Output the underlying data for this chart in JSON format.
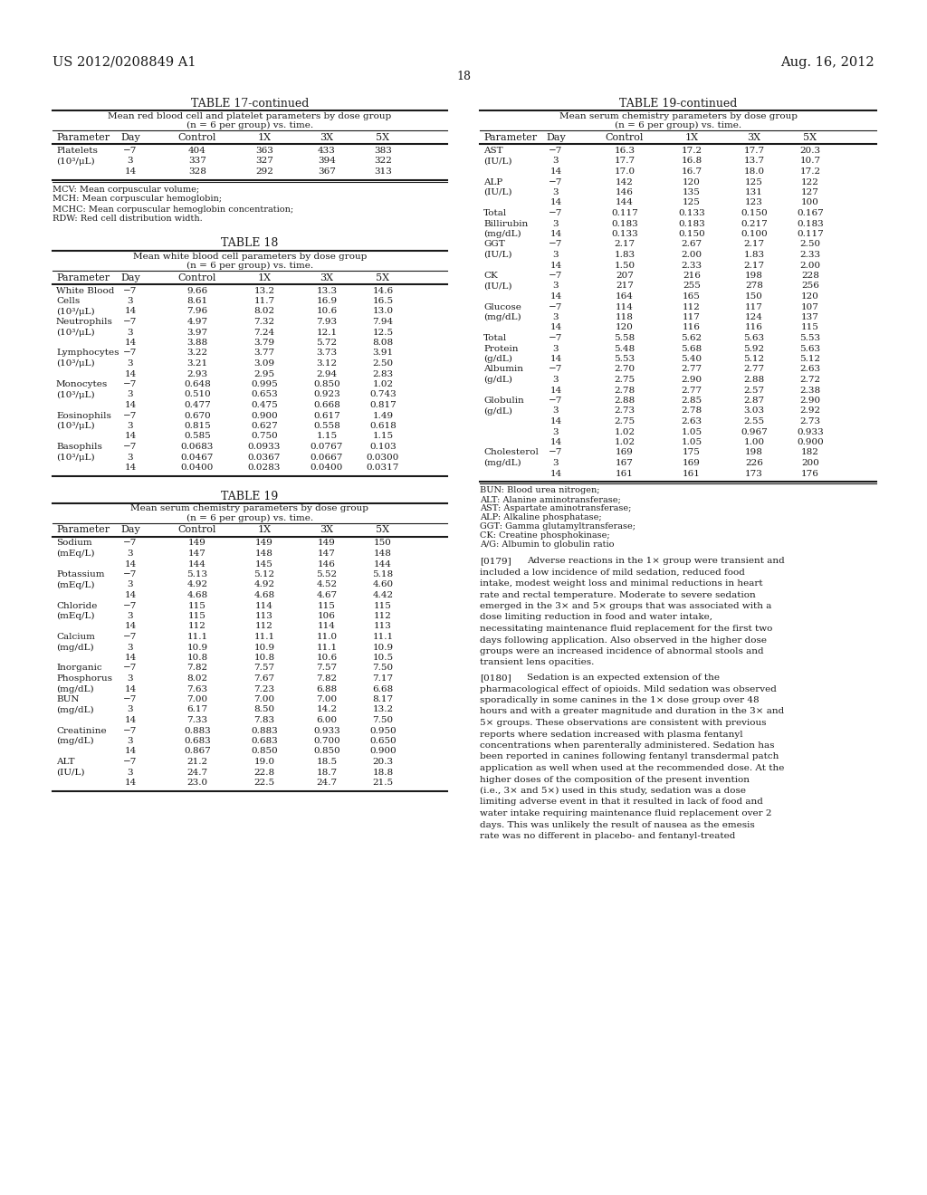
{
  "header_left": "US 2012/0208849 A1",
  "header_right": "Aug. 16, 2012",
  "page_number": "18",
  "bg": "#ffffff",
  "t17c_title": "TABLE 17-continued",
  "t17c_sub1": "Mean red blood cell and platelet parameters by dose group",
  "t17c_sub2": "(n = 6 per group) vs. time.",
  "t17c_headers": [
    "Parameter",
    "Day",
    "Control",
    "1X",
    "3X",
    "5X"
  ],
  "t17c_rows": [
    [
      "Platelets",
      "−7",
      "404",
      "363",
      "433",
      "383"
    ],
    [
      "(10³/μL)",
      "3",
      "337",
      "327",
      "394",
      "322"
    ],
    [
      "",
      "14",
      "328",
      "292",
      "367",
      "313"
    ]
  ],
  "t17c_fn": [
    "MCV: Mean corpuscular volume;",
    "MCH: Mean corpuscular hemoglobin;",
    "MCHC: Mean corpuscular hemoglobin concentration;",
    "RDW: Red cell distribution width."
  ],
  "t18_title": "TABLE 18",
  "t18_sub1": "Mean white blood cell parameters by dose group",
  "t18_sub2": "(n = 6 per group) vs. time.",
  "t18_rows": [
    [
      "White Blood",
      "−7",
      "9.66",
      "13.2",
      "13.3",
      "14.6"
    ],
    [
      "Cells",
      "3",
      "8.61",
      "11.7",
      "16.9",
      "16.5"
    ],
    [
      "(10³/μL)",
      "14",
      "7.96",
      "8.02",
      "10.6",
      "13.0"
    ],
    [
      "Neutrophils",
      "−7",
      "4.97",
      "7.32",
      "7.93",
      "7.94"
    ],
    [
      "(10³/μL)",
      "3",
      "3.97",
      "7.24",
      "12.1",
      "12.5"
    ],
    [
      "",
      "14",
      "3.88",
      "3.79",
      "5.72",
      "8.08"
    ],
    [
      "Lymphocytes",
      "−7",
      "3.22",
      "3.77",
      "3.73",
      "3.91"
    ],
    [
      "(10³/μL)",
      "3",
      "3.21",
      "3.09",
      "3.12",
      "2.50"
    ],
    [
      "",
      "14",
      "2.93",
      "2.95",
      "2.94",
      "2.83"
    ],
    [
      "Monocytes",
      "−7",
      "0.648",
      "0.995",
      "0.850",
      "1.02"
    ],
    [
      "(10³/μL)",
      "3",
      "0.510",
      "0.653",
      "0.923",
      "0.743"
    ],
    [
      "",
      "14",
      "0.477",
      "0.475",
      "0.668",
      "0.817"
    ],
    [
      "Eosinophils",
      "−7",
      "0.670",
      "0.900",
      "0.617",
      "1.49"
    ],
    [
      "(10³/μL)",
      "3",
      "0.815",
      "0.627",
      "0.558",
      "0.618"
    ],
    [
      "",
      "14",
      "0.585",
      "0.750",
      "1.15",
      "1.15"
    ],
    [
      "Basophils",
      "−7",
      "0.0683",
      "0.0933",
      "0.0767",
      "0.103"
    ],
    [
      "(10³/μL)",
      "3",
      "0.0467",
      "0.0367",
      "0.0667",
      "0.0300"
    ],
    [
      "",
      "14",
      "0.0400",
      "0.0283",
      "0.0400",
      "0.0317"
    ]
  ],
  "t19_title": "TABLE 19",
  "t19_sub1": "Mean serum chemistry parameters by dose group",
  "t19_sub2": "(n = 6 per group) vs. time.",
  "t19_rows": [
    [
      "Sodium",
      "−7",
      "149",
      "149",
      "149",
      "150"
    ],
    [
      "(mEq/L)",
      "3",
      "147",
      "148",
      "147",
      "148"
    ],
    [
      "",
      "14",
      "144",
      "145",
      "146",
      "144"
    ],
    [
      "Potassium",
      "−7",
      "5.13",
      "5.12",
      "5.52",
      "5.18"
    ],
    [
      "(mEq/L)",
      "3",
      "4.92",
      "4.92",
      "4.52",
      "4.60"
    ],
    [
      "",
      "14",
      "4.68",
      "4.68",
      "4.67",
      "4.42"
    ],
    [
      "Chloride",
      "−7",
      "115",
      "114",
      "115",
      "115"
    ],
    [
      "(mEq/L)",
      "3",
      "115",
      "113",
      "106",
      "112"
    ],
    [
      "",
      "14",
      "112",
      "112",
      "114",
      "113"
    ],
    [
      "Calcium",
      "−7",
      "11.1",
      "11.1",
      "11.0",
      "11.1"
    ],
    [
      "(mg/dL)",
      "3",
      "10.9",
      "10.9",
      "11.1",
      "10.9"
    ],
    [
      "",
      "14",
      "10.8",
      "10.8",
      "10.6",
      "10.5"
    ],
    [
      "Inorganic",
      "−7",
      "7.82",
      "7.57",
      "7.57",
      "7.50"
    ],
    [
      "Phosphorus",
      "3",
      "8.02",
      "7.67",
      "7.82",
      "7.17"
    ],
    [
      "(mg/dL)",
      "14",
      "7.63",
      "7.23",
      "6.88",
      "6.68"
    ],
    [
      "BUN",
      "−7",
      "7.00",
      "7.00",
      "7.00",
      "8.17"
    ],
    [
      "(mg/dL)",
      "3",
      "6.17",
      "8.50",
      "14.2",
      "13.2"
    ],
    [
      "",
      "14",
      "7.33",
      "7.83",
      "6.00",
      "7.50"
    ],
    [
      "Creatinine",
      "−7",
      "0.883",
      "0.883",
      "0.933",
      "0.950"
    ],
    [
      "(mg/dL)",
      "3",
      "0.683",
      "0.683",
      "0.700",
      "0.650"
    ],
    [
      "",
      "14",
      "0.867",
      "0.850",
      "0.850",
      "0.900"
    ],
    [
      "ALT",
      "−7",
      "21.2",
      "19.0",
      "18.5",
      "20.3"
    ],
    [
      "(IU/L)",
      "3",
      "24.7",
      "22.8",
      "18.7",
      "18.8"
    ],
    [
      "",
      "14",
      "23.0",
      "22.5",
      "24.7",
      "21.5"
    ]
  ],
  "t19c_title": "TABLE 19-continued",
  "t19c_sub1": "Mean serum chemistry parameters by dose group",
  "t19c_sub2": "(n = 6 per group) vs. time.",
  "t19c_rows": [
    [
      "AST",
      "−7",
      "16.3",
      "17.2",
      "17.7",
      "20.3"
    ],
    [
      "(IU/L)",
      "3",
      "17.7",
      "16.8",
      "13.7",
      "10.7"
    ],
    [
      "",
      "14",
      "17.0",
      "16.7",
      "18.0",
      "17.2"
    ],
    [
      "ALP",
      "−7",
      "142",
      "120",
      "125",
      "122"
    ],
    [
      "(IU/L)",
      "3",
      "146",
      "135",
      "131",
      "127"
    ],
    [
      "",
      "14",
      "144",
      "125",
      "123",
      "100"
    ],
    [
      "Total",
      "−7",
      "0.117",
      "0.133",
      "0.150",
      "0.167"
    ],
    [
      "Billirubin",
      "3",
      "0.183",
      "0.183",
      "0.217",
      "0.183"
    ],
    [
      "(mg/dL)",
      "14",
      "0.133",
      "0.150",
      "0.100",
      "0.117"
    ],
    [
      "GGT",
      "−7",
      "2.17",
      "2.67",
      "2.17",
      "2.50"
    ],
    [
      "(IU/L)",
      "3",
      "1.83",
      "2.00",
      "1.83",
      "2.33"
    ],
    [
      "",
      "14",
      "1.50",
      "2.33",
      "2.17",
      "2.00"
    ],
    [
      "CK",
      "−7",
      "207",
      "216",
      "198",
      "228"
    ],
    [
      "(IU/L)",
      "3",
      "217",
      "255",
      "278",
      "256"
    ],
    [
      "",
      "14",
      "164",
      "165",
      "150",
      "120"
    ],
    [
      "Glucose",
      "−7",
      "114",
      "112",
      "117",
      "107"
    ],
    [
      "(mg/dL)",
      "3",
      "118",
      "117",
      "124",
      "137"
    ],
    [
      "",
      "14",
      "120",
      "116",
      "116",
      "115"
    ],
    [
      "Total",
      "−7",
      "5.58",
      "5.62",
      "5.63",
      "5.53"
    ],
    [
      "Protein",
      "3",
      "5.48",
      "5.68",
      "5.92",
      "5.63"
    ],
    [
      "(g/dL)",
      "14",
      "5.53",
      "5.40",
      "5.12",
      "5.12"
    ],
    [
      "Albumin",
      "−7",
      "2.70",
      "2.77",
      "2.77",
      "2.63"
    ],
    [
      "(g/dL)",
      "3",
      "2.75",
      "2.90",
      "2.88",
      "2.72"
    ],
    [
      "",
      "14",
      "2.78",
      "2.77",
      "2.57",
      "2.38"
    ],
    [
      "Globulin",
      "−7",
      "2.88",
      "2.85",
      "2.87",
      "2.90"
    ],
    [
      "(g/dL)",
      "3",
      "2.73",
      "2.78",
      "3.03",
      "2.92"
    ],
    [
      "",
      "14",
      "2.75",
      "2.63",
      "2.55",
      "2.73"
    ],
    [
      "",
      "3",
      "1.02",
      "1.05",
      "0.967",
      "0.933"
    ],
    [
      "",
      "14",
      "1.02",
      "1.05",
      "1.00",
      "0.900"
    ],
    [
      "Cholesterol",
      "−7",
      "169",
      "175",
      "198",
      "182"
    ],
    [
      "(mg/dL)",
      "3",
      "167",
      "169",
      "226",
      "200"
    ],
    [
      "",
      "14",
      "161",
      "161",
      "173",
      "176"
    ]
  ],
  "t19c_fn": [
    "BUN: Blood urea nitrogen;",
    "ALT: Alanine aminotransferase;",
    "AST: Aspartate aminotransferase;",
    "ALP: Alkaline phosphatase;",
    "GGT: Gamma glutamyltransferase;",
    "CK: Creatine phosphokinase;",
    "A/G: Albumin to globulin ratio"
  ],
  "p179_label": "[0179]",
  "p179_text": "Adverse reactions in the 1× group were transient and included a low incidence of mild sedation, reduced food intake, modest weight loss and minimal reductions in heart rate and rectal temperature. Moderate to severe sedation emerged in the 3× and 5× groups that was associated with a dose limiting reduction in food and water intake, necessitating maintenance fluid replacement for the first two days following application. Also observed in the higher dose groups were an increased incidence of abnormal stools and transient lens opacities.",
  "p180_label": "[0180]",
  "p180_text": "Sedation is an expected extension of the pharmacological effect of opioids. Mild sedation was observed sporadically in some canines in the 1× dose group over 48 hours and with a greater magnitude and duration in the 3× and 5× groups. These observations are consistent with previous reports where sedation increased with plasma fentanyl concentrations when parenterally administered. Sedation has been reported in canines following fentanyl transdermal patch application as well when used at the recommended dose. At the higher doses of the composition of the present invention (i.e., 3× and 5×) used in this study, sedation was a dose limiting adverse event in that it resulted in lack of food and water intake requiring maintenance fluid replacement over 2 days. This was unlikely the result of nausea as the emesis rate was no different in placebo- and fentanyl-treated"
}
